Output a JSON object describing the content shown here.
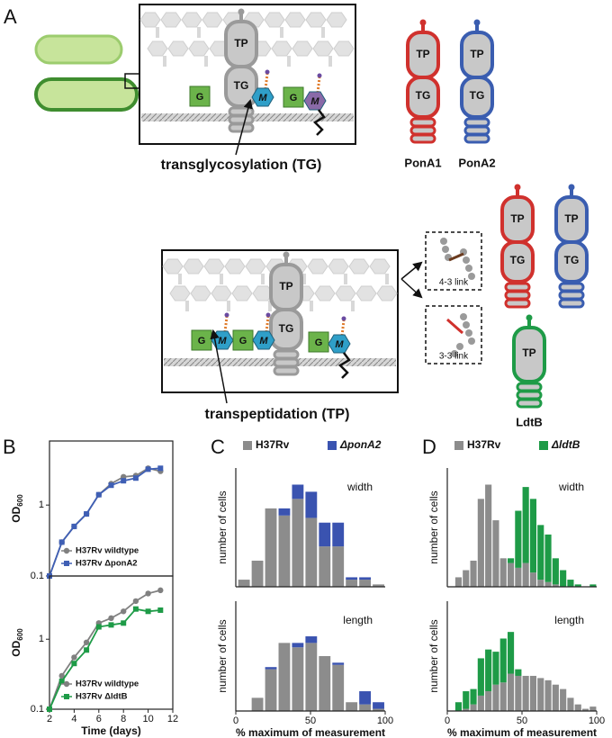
{
  "diagram": {
    "panel_label": "A",
    "tp": "TP",
    "tg": "TG",
    "g": "G",
    "m": "M",
    "tg_caption": "transglycosylation (TG)",
    "tp_caption": "transpeptidation (TP)",
    "pona1": "PonA1",
    "pona2": "PonA2",
    "link43": "4-3 link",
    "link33": "3-3 link",
    "ldtb": "LdtB"
  },
  "chart_data": [
    {
      "type": "line",
      "panel_label": "B",
      "y_label": "OD",
      "y_label_sub": "600",
      "x": [
        2,
        3,
        4,
        5,
        6,
        7,
        8,
        9,
        10,
        11
      ],
      "xlim": [
        2,
        12
      ],
      "ylim": [
        0.1,
        8
      ],
      "yticks": [
        0.1,
        1
      ],
      "log_y": true,
      "legend": "lower right",
      "series": [
        {
          "name": "H37Rv wildtype",
          "color": "#808080",
          "marker": "circle",
          "values": [
            0.1,
            0.3,
            0.5,
            0.75,
            1.4,
            2.0,
            2.5,
            2.6,
            3.3,
            3.0
          ]
        },
        {
          "name": "H37Rv ΔponA2",
          "color": "#3f5fb5",
          "marker": "square",
          "values": [
            0.1,
            0.3,
            0.5,
            0.75,
            1.4,
            1.9,
            2.2,
            2.4,
            3.2,
            3.3
          ]
        }
      ]
    },
    {
      "type": "line",
      "y_label": "OD",
      "y_label_sub": "600",
      "x_label": "Time (days)",
      "x": [
        2,
        3,
        4,
        5,
        6,
        7,
        8,
        9,
        10,
        11
      ],
      "xlim": [
        2,
        12
      ],
      "xticks": [
        2,
        4,
        6,
        8,
        10,
        12
      ],
      "ylim": [
        0.1,
        8
      ],
      "yticks": [
        0.1,
        1
      ],
      "log_y": true,
      "legend": "lower right",
      "series": [
        {
          "name": "H37Rv wildtype",
          "color": "#808080",
          "marker": "circle",
          "values": [
            0.1,
            0.3,
            0.55,
            0.9,
            1.7,
            2.0,
            2.5,
            3.5,
            4.5,
            5.0
          ]
        },
        {
          "name": "H37Rv ΔldtB",
          "color": "#1e9b47",
          "marker": "square",
          "values": [
            0.1,
            0.25,
            0.45,
            0.7,
            1.5,
            1.6,
            1.7,
            2.7,
            2.5,
            2.6
          ]
        }
      ]
    },
    {
      "type": "histogram",
      "panel_label": "C",
      "stacked": true,
      "y_label": "number of cells",
      "annotation": "width",
      "bins": [
        1,
        10,
        19,
        28,
        37,
        46,
        55,
        64,
        73,
        82,
        91,
        100
      ],
      "xlim": [
        0,
        100
      ],
      "ylim": [
        0,
        50
      ],
      "legend": "top",
      "series": [
        {
          "name": "H37Rv",
          "color": "#8c8c8c",
          "values": [
            3,
            11,
            33,
            30,
            37,
            29,
            17,
            17,
            3,
            3,
            1
          ]
        },
        {
          "name": "ΔponA2",
          "color": "#3a53b0",
          "values": [
            0,
            0,
            0,
            3,
            6,
            11,
            10,
            10,
            1,
            1,
            0
          ]
        }
      ]
    },
    {
      "type": "histogram",
      "stacked": true,
      "y_label": "number of cells",
      "annotation": "length",
      "x_label": "% maximum of measurement",
      "bins": [
        1,
        10,
        19,
        28,
        37,
        46,
        55,
        64,
        73,
        82,
        91,
        100
      ],
      "xlim": [
        0,
        100
      ],
      "xticks": [
        0,
        50,
        100
      ],
      "ylim": [
        0,
        50
      ],
      "series": [
        {
          "color": "#8c8c8c",
          "values": [
            0,
            6,
            19,
            31,
            29,
            31,
            25,
            21,
            4,
            3,
            1
          ]
        },
        {
          "color": "#3a53b0",
          "values": [
            0,
            0,
            1,
            0,
            2,
            3,
            0,
            1,
            0,
            6,
            3
          ]
        }
      ]
    },
    {
      "type": "histogram",
      "panel_label": "D",
      "stacked": true,
      "y_label": "number of cells",
      "annotation": "width",
      "bins": [
        5,
        10,
        15,
        20,
        25,
        30,
        35,
        40,
        45,
        50,
        55,
        60,
        65,
        70,
        75,
        80,
        85,
        90,
        95,
        100
      ],
      "xlim": [
        0,
        100
      ],
      "ylim": [
        0,
        50
      ],
      "legend": "top",
      "series": [
        {
          "name": "H37Rv",
          "color": "#8c8c8c",
          "values": [
            4,
            7,
            11,
            37,
            43,
            28,
            12,
            10,
            8,
            10,
            6,
            3,
            2,
            1,
            0,
            0,
            0,
            0,
            0
          ]
        },
        {
          "name": "ΔldtB",
          "color": "#1e9b47",
          "values": [
            0,
            0,
            0,
            0,
            0,
            0,
            0,
            2,
            24,
            32,
            31,
            23,
            20,
            11,
            7,
            3,
            1,
            0,
            1
          ]
        }
      ]
    },
    {
      "type": "histogram",
      "stacked": true,
      "y_label": "number of cells",
      "annotation": "length",
      "x_label": "% maximum of measurement",
      "bins": [
        5,
        10,
        15,
        20,
        25,
        30,
        35,
        40,
        45,
        50,
        55,
        60,
        65,
        70,
        75,
        80,
        85,
        90,
        95,
        100
      ],
      "xlim": [
        0,
        100
      ],
      "xticks": [
        0,
        50,
        100
      ],
      "ylim": [
        0,
        50
      ],
      "series": [
        {
          "color": "#8c8c8c",
          "values": [
            0,
            1,
            3,
            7,
            9,
            12,
            13,
            17,
            16,
            16,
            16,
            15,
            14,
            12,
            10,
            6,
            3,
            1,
            2
          ]
        },
        {
          "color": "#1e9b47",
          "values": [
            4,
            8,
            7,
            17,
            19,
            15,
            20,
            19,
            3,
            0,
            0,
            0,
            0,
            0,
            0,
            0,
            0,
            0,
            0
          ]
        }
      ]
    }
  ]
}
